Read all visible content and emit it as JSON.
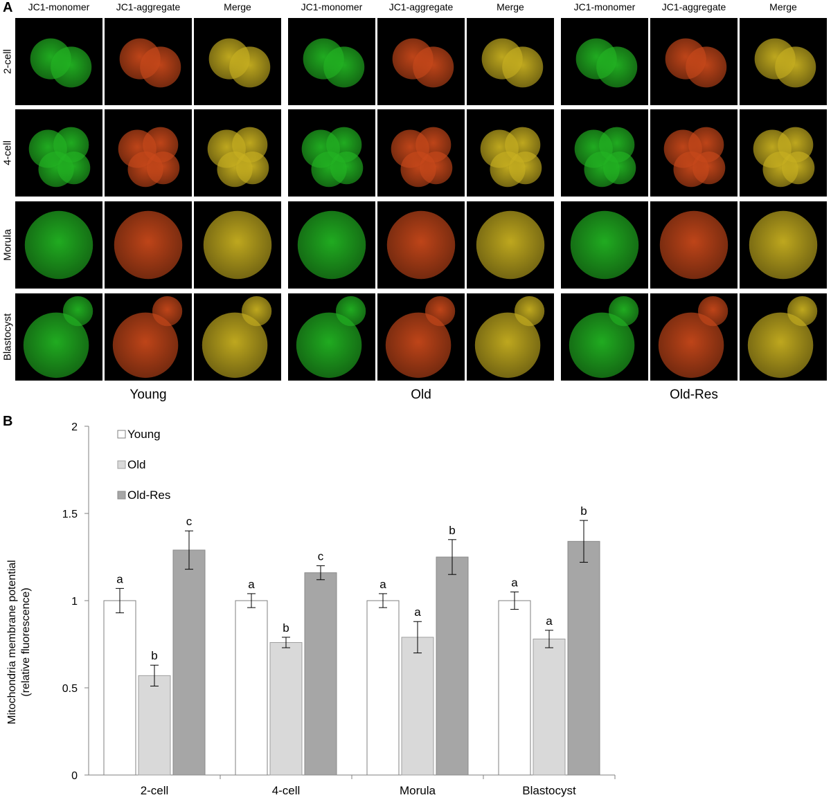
{
  "panels": {
    "a": "A",
    "b": "B"
  },
  "panel_a": {
    "columns": [
      "JC1-monomer",
      "JC1-aggregate",
      "Merge"
    ],
    "rows": [
      "2-cell",
      "4-cell",
      "Morula",
      "Blastocyst"
    ],
    "groups": [
      "Young",
      "Old",
      "Old-Res"
    ],
    "channel_colors": {
      "JC1-monomer": "#22b422",
      "JC1-aggregate": "#c8481a",
      "Merge": "#c8b020"
    }
  },
  "chart_data": {
    "type": "bar",
    "categories": [
      "2-cell",
      "4-cell",
      "Morula",
      "Blastocyst"
    ],
    "ylabel": "Mitochondria membrane potential\n(relative fluorescence)",
    "ylabel_lines": [
      "Mitochondria membrane potential",
      "(relative fluorescence)"
    ],
    "ylim": [
      0,
      2
    ],
    "yticks": [
      "0",
      "0.5",
      "1",
      "1.5",
      "2"
    ],
    "legend_position": "top-left",
    "grid": false,
    "series": [
      {
        "name": "Young",
        "color": "#ffffff",
        "values": [
          1.0,
          1.0,
          1.0,
          1.0
        ],
        "errors": [
          0.07,
          0.04,
          0.04,
          0.05
        ],
        "letters": [
          "a",
          "a",
          "a",
          "a"
        ]
      },
      {
        "name": "Old",
        "color": "#d9d9d9",
        "values": [
          0.57,
          0.76,
          0.79,
          0.78
        ],
        "errors": [
          0.06,
          0.03,
          0.09,
          0.05
        ],
        "letters": [
          "b",
          "b",
          "a",
          "a"
        ]
      },
      {
        "name": "Old-Res",
        "color": "#a6a6a6",
        "values": [
          1.29,
          1.16,
          1.25,
          1.34
        ],
        "errors": [
          0.11,
          0.04,
          0.1,
          0.12
        ],
        "letters": [
          "c",
          "c",
          "b",
          "b"
        ]
      }
    ]
  }
}
